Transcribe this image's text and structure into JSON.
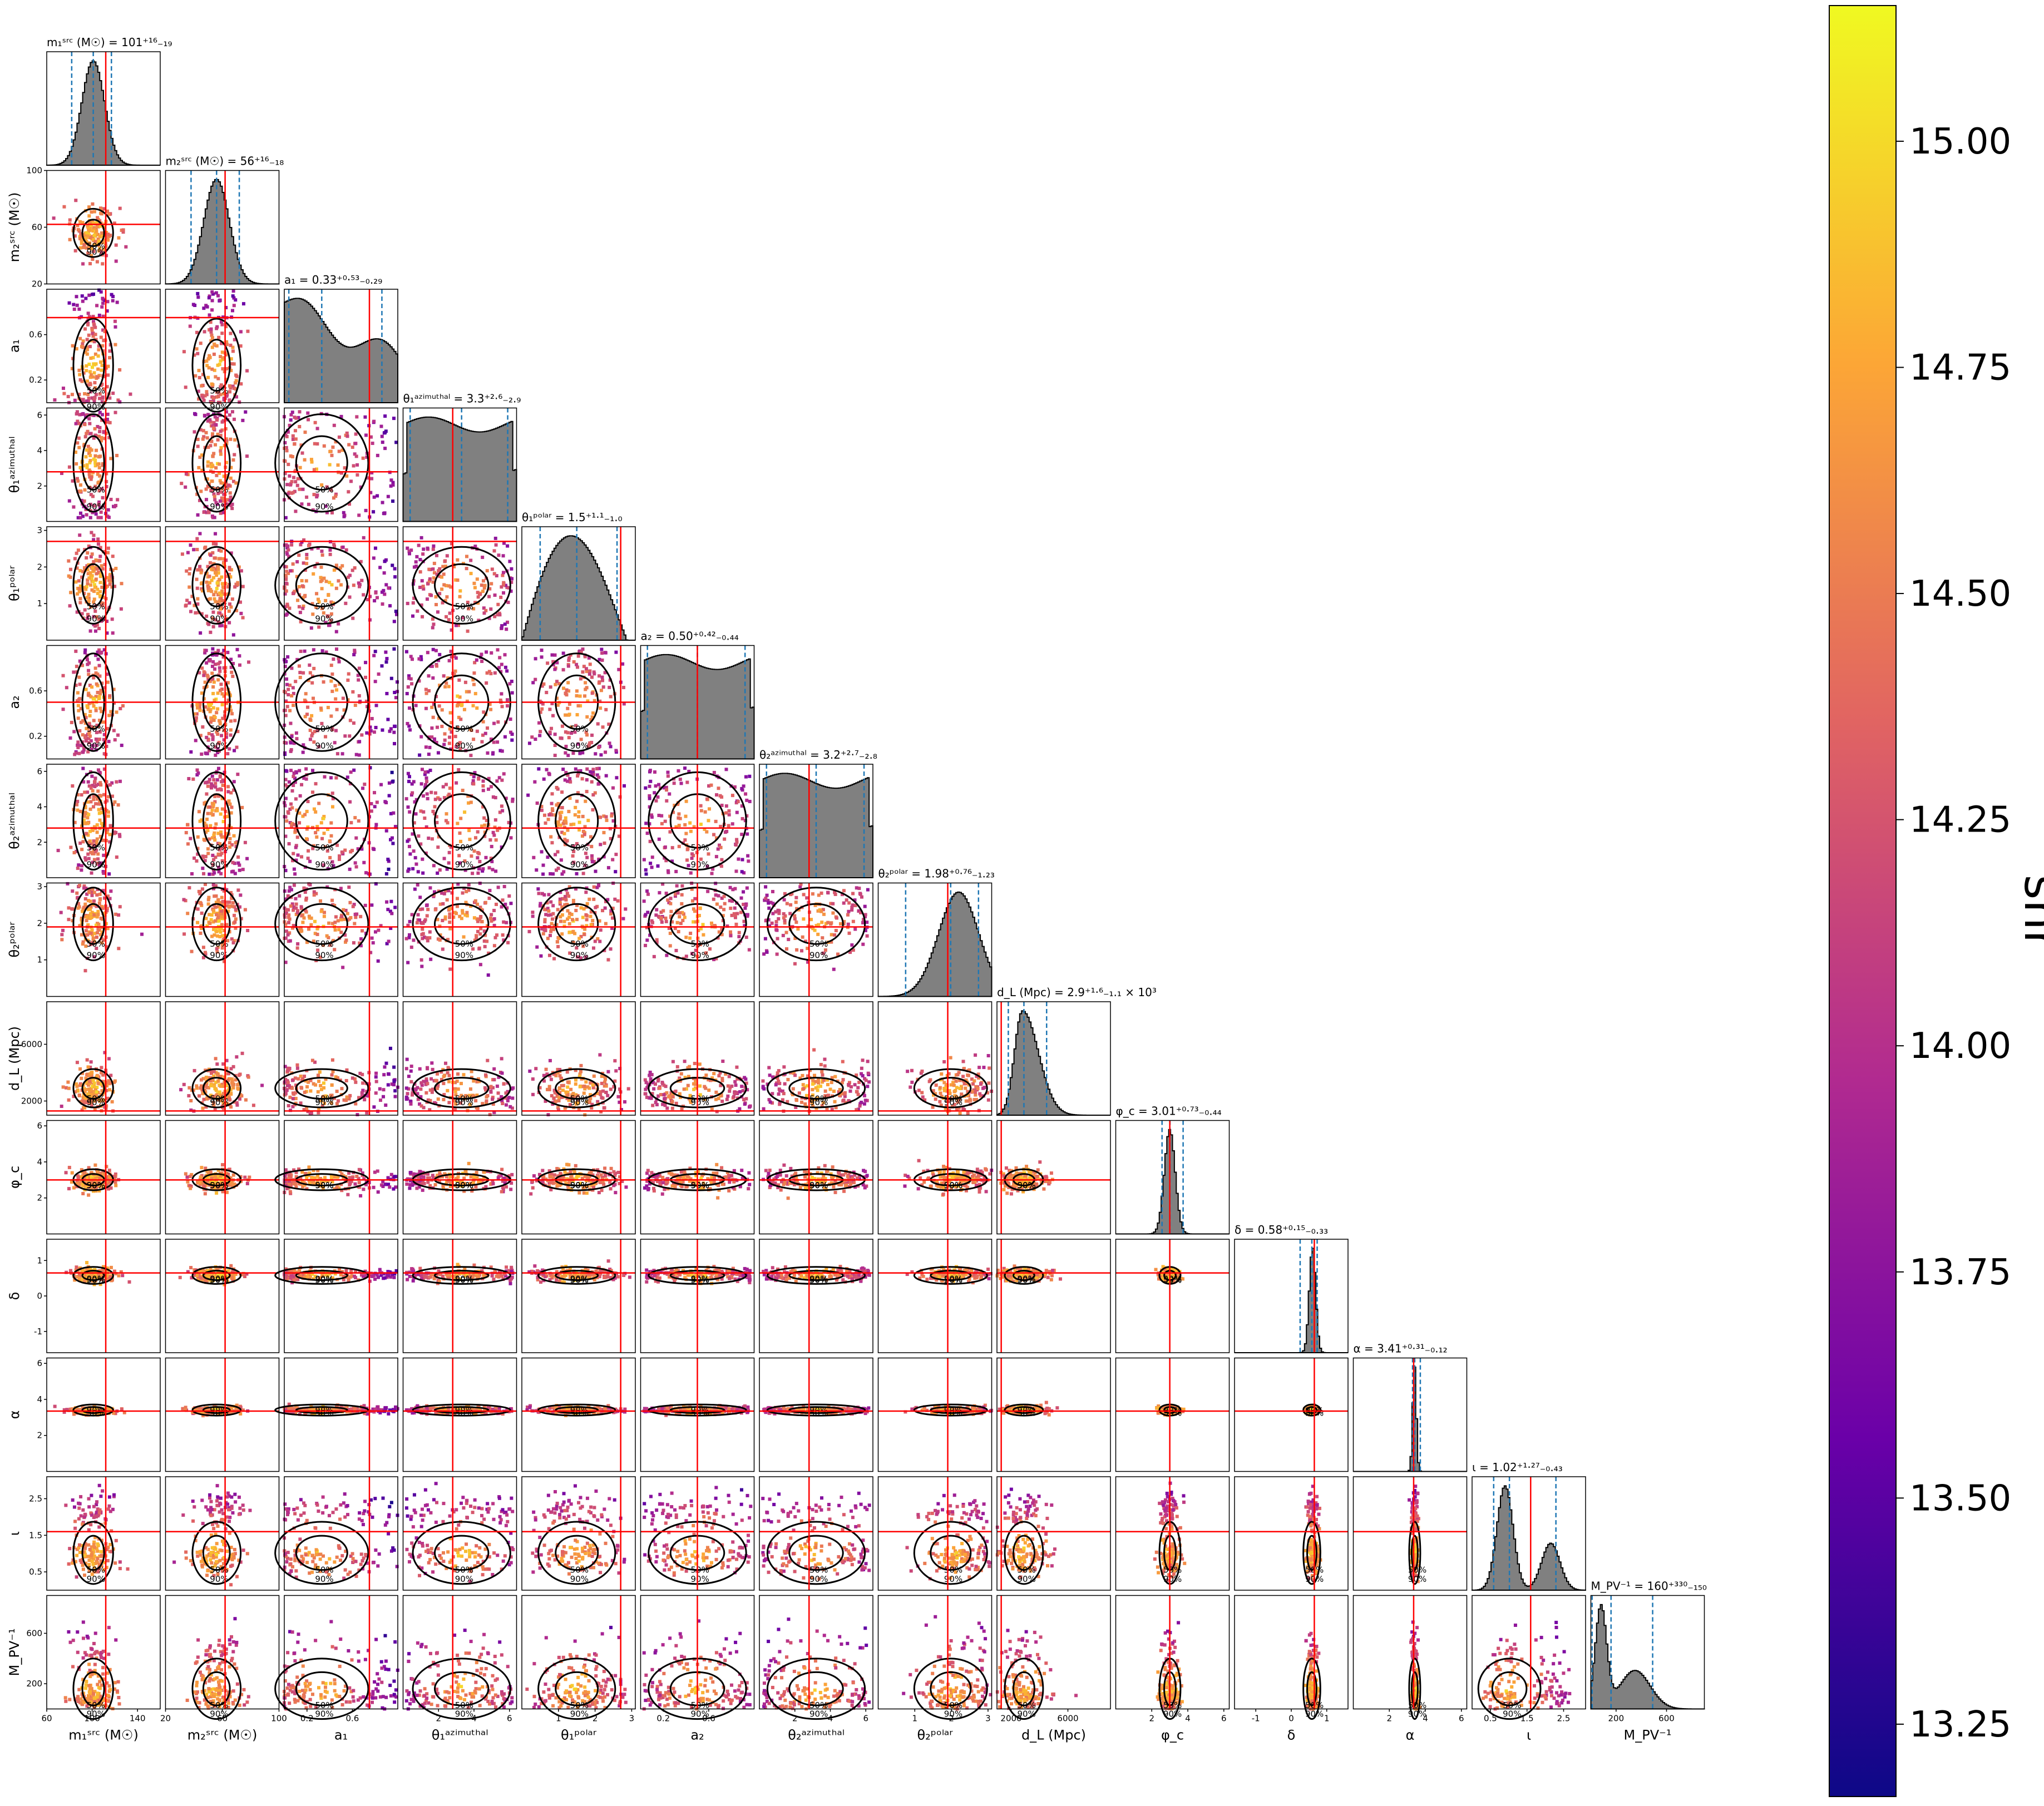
{
  "chart_data": {
    "type": "corner",
    "parameters": [
      {
        "key": "m1",
        "label": "m₁ˢʳᶜ (M☉)",
        "title": "m₁ˢʳᶜ (M☉) = 101⁺¹⁶₋₁₉",
        "range": [
          60,
          160
        ],
        "ticks": [
          60,
          100,
          140
        ],
        "truth": 112,
        "median": 101,
        "q_lo": 82,
        "q_hi": 117,
        "dist": "normal",
        "mu": 101,
        "sigma": 10
      },
      {
        "key": "m2",
        "label": "m₂ˢʳᶜ (M☉)",
        "title": "m₂ˢʳᶜ (M☉) = 56⁺¹⁶₋₁₈",
        "range": [
          20,
          100
        ],
        "ticks": [
          20,
          60,
          100
        ],
        "truth": 62,
        "median": 56,
        "q_lo": 38,
        "q_hi": 72,
        "dist": "normal",
        "mu": 56,
        "sigma": 9
      },
      {
        "key": "a1",
        "label": "a₁",
        "title": "a₁ = 0.33⁺⁰·⁵³₋₀.₂₉",
        "range": [
          0,
          1
        ],
        "ticks": [
          0.2,
          0.6
        ],
        "tick_labels": [
          "0.2",
          "0.6"
        ],
        "truth": 0.75,
        "median": 0.33,
        "q_lo": 0.04,
        "q_hi": 0.86,
        "dist": "decay"
      },
      {
        "key": "th1a",
        "label": "θ₁ᵃᶻⁱᵐᵘᵗʰᵃˡ",
        "title": "θ₁ᵃᶻⁱᵐᵘᵗʰᵃˡ = 3.3⁺²·⁶₋₂.₉",
        "range": [
          0,
          6.4
        ],
        "ticks": [
          2,
          4,
          6
        ],
        "truth": 2.8,
        "median": 3.3,
        "q_lo": 0.4,
        "q_hi": 5.9,
        "dist": "uniform"
      },
      {
        "key": "th1p",
        "label": "θ₁ᵖᵒˡᵃʳ",
        "title": "θ₁ᵖᵒˡᵃʳ = 1.5⁺¹·¹₋₁.₀",
        "range": [
          0,
          3.1
        ],
        "ticks": [
          1,
          2,
          3
        ],
        "truth": 2.7,
        "median": 1.5,
        "q_lo": 0.5,
        "q_hi": 2.6,
        "dist": "sine"
      },
      {
        "key": "a2",
        "label": "a₂",
        "title": "a₂ = 0.50⁺⁰·⁴²₋₀.₄₄",
        "range": [
          0,
          1
        ],
        "ticks": [
          0.2,
          0.6
        ],
        "tick_labels": [
          "0.2",
          "0.6"
        ],
        "truth": 0.5,
        "median": 0.5,
        "q_lo": 0.06,
        "q_hi": 0.92,
        "dist": "uniform"
      },
      {
        "key": "th2a",
        "label": "θ₂ᵃᶻⁱᵐᵘᵗʰᵃˡ",
        "title": "θ₂ᵃᶻⁱᵐᵘᵗʰᵃˡ = 3.2⁺²·⁷₋₂.₈",
        "range": [
          0,
          6.4
        ],
        "ticks": [
          2,
          4,
          6
        ],
        "truth": 2.8,
        "median": 3.2,
        "q_lo": 0.4,
        "q_hi": 5.9,
        "dist": "uniform"
      },
      {
        "key": "th2p",
        "label": "θ₂ᵖᵒˡᵃʳ",
        "title": "θ₂ᵖᵒˡᵃʳ = 1.98⁺⁰·⁷⁶₋₁.₂₃",
        "range": [
          0,
          3.1
        ],
        "ticks": [
          1,
          2,
          3
        ],
        "truth": 1.9,
        "median": 1.98,
        "q_lo": 0.75,
        "q_hi": 2.74,
        "dist": "normal",
        "mu": 2.2,
        "sigma": 0.55
      },
      {
        "key": "dL",
        "label": "d_L (Mpc)",
        "title": "d_L (Mpc) = 2.9⁺¹·⁶₋₁.₁ × 10³",
        "range": [
          1000,
          9000
        ],
        "ticks": [
          2000,
          6000
        ],
        "truth": 1300,
        "median": 2900,
        "q_lo": 1800,
        "q_hi": 4500,
        "dist": "lognormal",
        "mu": 2800,
        "sigma": 800
      },
      {
        "key": "phic",
        "label": "φ_c",
        "title": "φ_c = 3.01⁺⁰·⁷³₋₀.₄₄",
        "range": [
          0,
          6.3
        ],
        "ticks": [
          2,
          4,
          6
        ],
        "truth": 3.0,
        "median": 3.01,
        "q_lo": 2.57,
        "q_hi": 3.74,
        "dist": "normal",
        "mu": 3.0,
        "sigma": 0.3
      },
      {
        "key": "delta",
        "label": "δ",
        "title": "δ = 0.58⁺⁰·¹⁵₋₀.₃₃",
        "range": [
          -1.6,
          1.6
        ],
        "ticks": [
          -1,
          0,
          1
        ],
        "truth": 0.65,
        "median": 0.58,
        "q_lo": 0.25,
        "q_hi": 0.73,
        "dist": "normal",
        "mu": 0.6,
        "sigma": 0.09
      },
      {
        "key": "alpha",
        "label": "α",
        "title": "α = 3.41⁺⁰·³¹₋₀.₁₂",
        "range": [
          0,
          6.3
        ],
        "ticks": [
          2,
          4,
          6
        ],
        "truth": 3.35,
        "median": 3.41,
        "q_lo": 3.29,
        "q_hi": 3.72,
        "dist": "normal",
        "mu": 3.4,
        "sigma": 0.1
      },
      {
        "key": "iota",
        "label": "ι",
        "title": "ι = 1.02⁺¹·²⁷₋₀.₄₃",
        "range": [
          0,
          3.1
        ],
        "ticks": [
          0.5,
          1.5,
          2.5
        ],
        "truth": 1.6,
        "median": 1.02,
        "q_lo": 0.59,
        "q_hi": 2.29,
        "dist": "bimodal"
      },
      {
        "key": "Mpv",
        "label": "M_PV⁻¹",
        "title": "M_PV⁻¹ = 160⁺³³⁰₋₁₅₀",
        "range": [
          0,
          900
        ],
        "ticks": [
          200,
          600
        ],
        "truth": null,
        "median": 160,
        "q_lo": 10,
        "q_hi": 490,
        "dist": "skew"
      }
    ],
    "colorbar": {
      "label": "snr",
      "colormap": "plasma",
      "range": [
        13.17,
        15.15
      ],
      "ticks": [
        13.25,
        13.5,
        13.75,
        14.0,
        14.25,
        14.5,
        14.75,
        15.0
      ],
      "tick_labels": [
        "13.25",
        "13.50",
        "13.75",
        "14.00",
        "14.25",
        "14.50",
        "14.75",
        "15.00"
      ]
    },
    "contour_labels": [
      "50%",
      "90%"
    ],
    "truth_color": "#ff0000",
    "quantile_color": "#1f77b4",
    "hist_fill": "#808080",
    "colormap_stops": [
      "#0d0887",
      "#6a00a8",
      "#b12a90",
      "#e16462",
      "#fca636",
      "#f0f921"
    ]
  }
}
